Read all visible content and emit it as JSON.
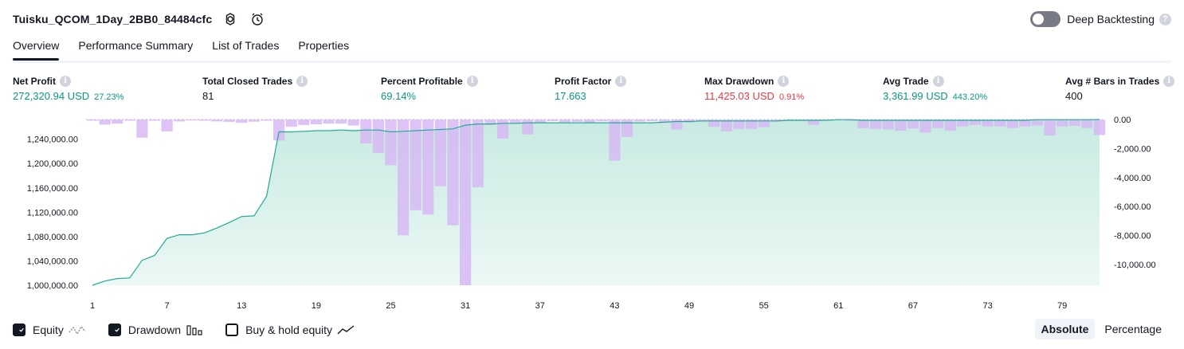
{
  "header": {
    "title": "Tuisku_QCOM_1Day_2BB0_84484cfc",
    "deep_backtesting_label": "Deep Backtesting",
    "help_mark": "?"
  },
  "tabs": [
    {
      "label": "Overview"
    },
    {
      "label": "Performance Summary"
    },
    {
      "label": "List of Trades"
    },
    {
      "label": "Properties"
    }
  ],
  "stats": [
    {
      "label": "Net Profit",
      "value": "272,320.94 USD",
      "pct": "27.23%",
      "color": "green"
    },
    {
      "label": "Total Closed Trades",
      "value": "81",
      "pct": "",
      "color": "neutral"
    },
    {
      "label": "Percent Profitable",
      "value": "69.14%",
      "pct": "",
      "color": "green"
    },
    {
      "label": "Profit Factor",
      "value": "17.663",
      "pct": "",
      "color": "green"
    },
    {
      "label": "Max Drawdown",
      "value": "11,425.03 USD",
      "pct": "0.91%",
      "color": "red"
    },
    {
      "label": "Avg Trade",
      "value": "3,361.99 USD",
      "pct": "443.20%",
      "color": "green"
    },
    {
      "label": "Avg # Bars in Trades",
      "value": "400",
      "pct": "",
      "color": "neutral"
    }
  ],
  "info_mark": "i",
  "chart_data": {
    "type": "line",
    "x": [
      1,
      2,
      3,
      4,
      5,
      6,
      7,
      8,
      9,
      10,
      11,
      12,
      13,
      14,
      15,
      16,
      17,
      18,
      19,
      20,
      21,
      22,
      23,
      24,
      25,
      26,
      27,
      28,
      29,
      30,
      31,
      32,
      33,
      34,
      35,
      36,
      37,
      38,
      39,
      40,
      41,
      42,
      43,
      44,
      45,
      46,
      47,
      48,
      49,
      50,
      51,
      52,
      53,
      54,
      55,
      56,
      57,
      58,
      59,
      60,
      61,
      62,
      63,
      64,
      65,
      66,
      67,
      68,
      69,
      70,
      71,
      72,
      73,
      74,
      75,
      76,
      77,
      78,
      79,
      80,
      81,
      82
    ],
    "x_ticks": [
      "1",
      "7",
      "13",
      "19",
      "25",
      "31",
      "37",
      "43",
      "49",
      "55",
      "61",
      "67",
      "73",
      "79"
    ],
    "y_left_ticks": [
      "1,000,000.00",
      "1,040,000.00",
      "1,080,000.00",
      "1,120,000.00",
      "1,160,000.00",
      "1,200,000.00",
      "1,240,000.00"
    ],
    "y_right_ticks": [
      "0.00",
      "-2,000.00",
      "-4,000.00",
      "-6,000.00",
      "-8,000.00",
      "-10,000.00"
    ],
    "ylim_left": [
      1000000,
      1272320.94
    ],
    "ylim_right": [
      -11425.03,
      0
    ],
    "series": [
      {
        "name": "Equity",
        "axis": "left",
        "values": [
          1000000,
          1007000,
          1011000,
          1012000,
          1041000,
          1049000,
          1077000,
          1083000,
          1083000,
          1086000,
          1094000,
          1103000,
          1113000,
          1114000,
          1146000,
          1252000,
          1252000,
          1253000,
          1254000,
          1254000,
          1255000,
          1254000,
          1255000,
          1255000,
          1252000,
          1253000,
          1254000,
          1255000,
          1256000,
          1257000,
          1263000,
          1265000,
          1265000,
          1266000,
          1266000,
          1267000,
          1267000,
          1267000,
          1267000,
          1267000,
          1267000,
          1267000,
          1267000,
          1267000,
          1267000,
          1267000,
          1268000,
          1269000,
          1269000,
          1270000,
          1270000,
          1270000,
          1270000,
          1270000,
          1270000,
          1270000,
          1271000,
          1271000,
          1271000,
          1271000,
          1272000,
          1272000,
          1271000,
          1271000,
          1271000,
          1271000,
          1271000,
          1271000,
          1271000,
          1271000,
          1271000,
          1271000,
          1271000,
          1271000,
          1271000,
          1271000,
          1272000,
          1272000,
          1272000,
          1272000,
          1272000,
          1272320
        ]
      },
      {
        "name": "Drawdown",
        "axis": "right",
        "values": [
          -80,
          -350,
          -280,
          -80,
          -1250,
          -80,
          -820,
          -130,
          -60,
          -80,
          -130,
          -160,
          -230,
          -150,
          -80,
          -1450,
          -500,
          -380,
          -330,
          -280,
          -280,
          -420,
          -1650,
          -2300,
          -3150,
          -7980,
          -6250,
          -6550,
          -4600,
          -7290,
          -11430,
          -4670,
          -380,
          -1320,
          -280,
          -1020,
          -220,
          -110,
          -180,
          -160,
          -190,
          -130,
          -2840,
          -1200,
          -150,
          -120,
          -240,
          -680,
          -210,
          -140,
          -500,
          -820,
          -640,
          -650,
          -530,
          -150,
          -90,
          -60,
          -360,
          -80,
          -60,
          -100,
          -600,
          -650,
          -680,
          -780,
          -620,
          -900,
          -580,
          -760,
          -480,
          -380,
          -480,
          -480,
          -580,
          -480,
          -420,
          -1100,
          -480,
          -440,
          -580,
          -1070
        ]
      }
    ],
    "legend": [
      {
        "name": "Equity",
        "checked": true
      },
      {
        "name": "Drawdown",
        "checked": true
      },
      {
        "name": "Buy & hold equity",
        "checked": false
      }
    ],
    "colors": {
      "equity_line": "#22ab94",
      "equity_fill": "#c8eae2",
      "drawdown_bar": "#d7b9f5",
      "drawdown_bar_overlap": "#b4b4e6",
      "grid": "#f0f3fa"
    }
  },
  "view_modes": [
    {
      "label": "Absolute",
      "active": true
    },
    {
      "label": "Percentage",
      "active": false
    }
  ]
}
